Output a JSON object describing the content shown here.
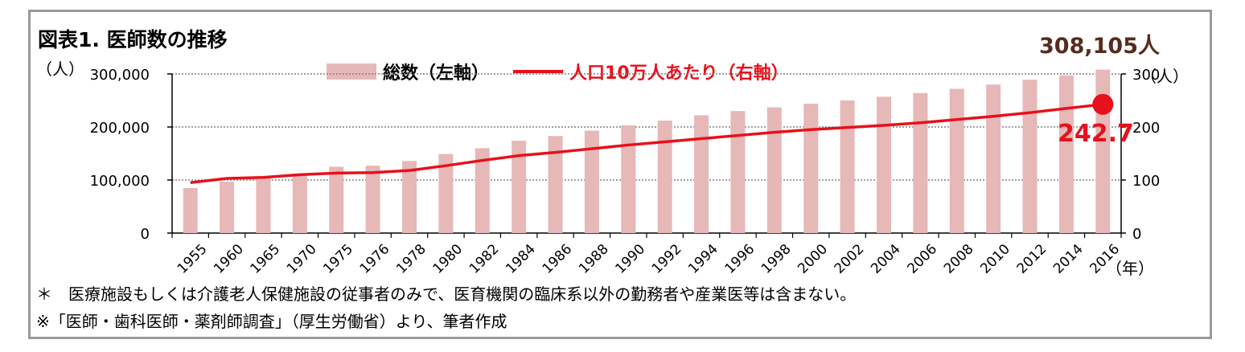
{
  "title": "図表1. 医師数の推移",
  "unit_left": "（人）",
  "unit_right": "（人）",
  "year_unit": "（年）",
  "legend": {
    "bars": "総数（左軸）",
    "line": "人口10万人あたり（右軸）"
  },
  "annotations": {
    "last_total": "308,105人",
    "last_per_capita": "242.7"
  },
  "notes": [
    "＊　医療施設もしくは介護老人保健施設の従事者のみで、医育機関の臨床系以外の勤務者や産業医等は含まない。",
    "※「医師・歯科医師・薬剤師調査」（厚生労働省）より、筆者作成"
  ],
  "colors": {
    "bar": "#e6b8b7",
    "line": "#e8101b",
    "grid": "#808080"
  },
  "chart_data": {
    "type": "bar",
    "categories": [
      "1955",
      "1960",
      "1965",
      "1970",
      "1975",
      "1976",
      "1978",
      "1980",
      "1982",
      "1984",
      "1986",
      "1988",
      "1990",
      "1992",
      "1994",
      "1996",
      "1998",
      "2000",
      "2002",
      "2004",
      "2006",
      "2008",
      "2010",
      "2012",
      "2014",
      "2016"
    ],
    "series": [
      {
        "name": "総数（左軸）",
        "type": "bar",
        "axis": "left",
        "values": [
          85000,
          97000,
          104000,
          111000,
          125000,
          127000,
          136000,
          149000,
          160000,
          174000,
          183000,
          193000,
          203000,
          212000,
          222000,
          230000,
          237000,
          244000,
          250000,
          257000,
          264000,
          272000,
          280000,
          289000,
          297000,
          308105
        ]
      },
      {
        "name": "人口10万人あたり（右軸）",
        "type": "line",
        "axis": "right",
        "values": [
          95,
          103,
          105,
          110,
          113,
          114,
          118,
          127,
          137,
          146,
          152,
          159,
          166,
          172,
          178,
          184,
          190,
          195,
          199,
          203,
          208,
          214,
          220,
          227,
          235,
          242.7
        ]
      }
    ],
    "y_left": {
      "min": 0,
      "max": 300000,
      "ticks": [
        0,
        100000,
        200000,
        300000
      ],
      "tick_labels": [
        "0",
        "100,000",
        "200,000",
        "300,000"
      ]
    },
    "y_right": {
      "min": 0,
      "max": 300,
      "ticks": [
        0,
        100,
        200,
        300
      ],
      "tick_labels": [
        "0",
        "100",
        "200",
        "300"
      ]
    },
    "grid": true,
    "legend_position": "top"
  }
}
